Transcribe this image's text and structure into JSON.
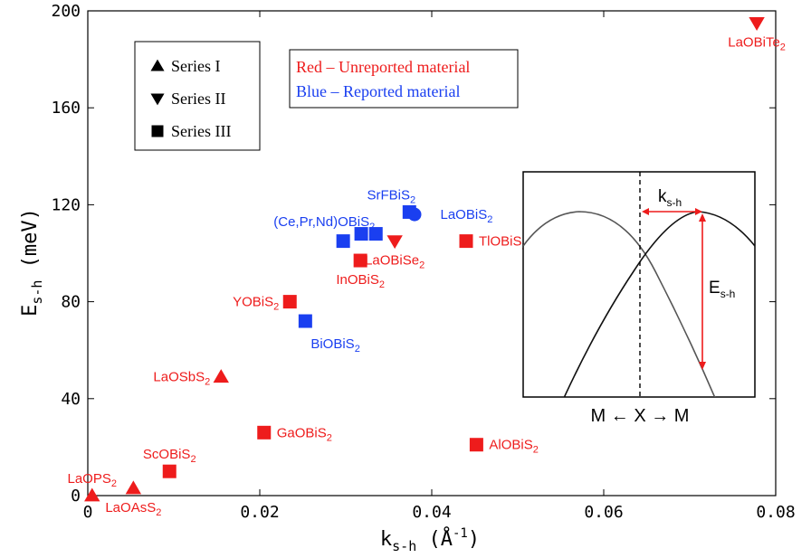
{
  "chart_data": {
    "type": "scatter",
    "xlabel": "k",
    "xlabel_sub": "s-h",
    "xlabel_unit_open": " (",
    "xlabel_unit": "Å",
    "xlabel_unit_sup": "-1",
    "xlabel_unit_close": ")",
    "ylabel": "E",
    "ylabel_sub": "s-h",
    "ylabel_unit": " (meV)",
    "xlim": [
      0,
      0.08
    ],
    "ylim": [
      0,
      200
    ],
    "xticks": [
      {
        "v": 0,
        "t": "0"
      },
      {
        "v": 0.02,
        "t": "0.02"
      },
      {
        "v": 0.04,
        "t": "0.04"
      },
      {
        "v": 0.06,
        "t": "0.06"
      },
      {
        "v": 0.08,
        "t": "0.08"
      }
    ],
    "yticks": [
      {
        "v": 0,
        "t": "0"
      },
      {
        "v": 40,
        "t": "40"
      },
      {
        "v": 80,
        "t": "80"
      },
      {
        "v": 120,
        "t": "120"
      },
      {
        "v": 160,
        "t": "160"
      },
      {
        "v": 200,
        "t": "200"
      }
    ],
    "legend_series": [
      {
        "marker": "triangle-up",
        "label": "Series I"
      },
      {
        "marker": "triangle-down",
        "label": "Series II"
      },
      {
        "marker": "square",
        "label": "Series III"
      }
    ],
    "legend_colors": [
      {
        "color": "#ee1c1c",
        "label": "Red – Unreported material"
      },
      {
        "color": "#1a3ff0",
        "label": "Blue – Reported material"
      }
    ],
    "colors": {
      "unreported": "#ee1c1c",
      "reported": "#1a3ff0"
    },
    "points": [
      {
        "name": "LaOPS",
        "sub": "2",
        "x": 0.0005,
        "y": 0,
        "marker": "triangle-up",
        "color": "unreported",
        "lpos": "above"
      },
      {
        "name": "LaOAsS",
        "sub": "2",
        "x": 0.0053,
        "y": 3,
        "marker": "triangle-up",
        "color": "unreported",
        "lpos": "below"
      },
      {
        "name": "ScOBiS",
        "sub": "2",
        "x": 0.0095,
        "y": 10,
        "marker": "square",
        "color": "unreported",
        "lpos": "above"
      },
      {
        "name": "LaOSbS",
        "sub": "2",
        "x": 0.0155,
        "y": 49,
        "marker": "triangle-up",
        "color": "unreported",
        "lpos": "left"
      },
      {
        "name": "GaOBiS",
        "sub": "2",
        "x": 0.0205,
        "y": 26,
        "marker": "square",
        "color": "unreported",
        "lpos": "right"
      },
      {
        "name": "YOBiS",
        "sub": "2",
        "x": 0.0235,
        "y": 80,
        "marker": "square",
        "color": "unreported",
        "lpos": "left"
      },
      {
        "name": "BiOBiS",
        "sub": "2",
        "x": 0.0253,
        "y": 72,
        "marker": "square",
        "color": "reported",
        "lpos": "below-right"
      },
      {
        "name": "InOBiS",
        "sub": "2",
        "x": 0.0317,
        "y": 97,
        "marker": "square",
        "color": "unreported",
        "lpos": "below"
      },
      {
        "name": "LaOBiSe",
        "sub": "2",
        "x": 0.0357,
        "y": 105,
        "marker": "triangle-down",
        "color": "unreported",
        "lpos": "below"
      },
      {
        "name": "(Ce,Pr,Nd)OBiS",
        "sub": "2",
        "x": 0.0297,
        "y": 105,
        "marker": "square",
        "color": "reported",
        "lpos": "none"
      },
      {
        "name": "",
        "sub": "",
        "x": 0.0318,
        "y": 108,
        "marker": "square",
        "color": "reported",
        "lpos": "none"
      },
      {
        "name": "",
        "sub": "",
        "x": 0.0335,
        "y": 108,
        "marker": "square",
        "color": "reported",
        "lpos": "none"
      },
      {
        "name": "SrFBiS",
        "sub": "2",
        "x": 0.0374,
        "y": 117,
        "marker": "square",
        "color": "reported",
        "lpos": "none"
      },
      {
        "name": "LaOBiS",
        "sub": "2",
        "x": 0.038,
        "y": 116,
        "marker": "circle",
        "color": "reported",
        "lpos": "none"
      },
      {
        "name": "TlOBiS",
        "sub": "2",
        "x": 0.044,
        "y": 105,
        "marker": "square",
        "color": "unreported",
        "lpos": "right"
      },
      {
        "name": "AlOBiS",
        "sub": "2",
        "x": 0.0452,
        "y": 21,
        "marker": "square",
        "color": "unreported",
        "lpos": "right"
      },
      {
        "name": "LaOBiTe",
        "sub": "2",
        "x": 0.0778,
        "y": 195,
        "marker": "triangle-down",
        "color": "unreported",
        "lpos": "below"
      }
    ],
    "group_labels": [
      {
        "name": "(Ce,Pr,Nd)OBiS",
        "sub": "2",
        "color": "reported",
        "x": 0.0275,
        "y": 113
      },
      {
        "name": "SrFBiS",
        "sub": "2",
        "color": "reported",
        "x": 0.0353,
        "y": 124
      },
      {
        "name": "LaOBiS",
        "sub": "2",
        "color": "reported",
        "x": 0.041,
        "y": 116
      }
    ],
    "inset": {
      "k_label": "k",
      "k_sub": "s-h",
      "e_label": "E",
      "e_sub": "s-h",
      "axis_left": "M",
      "axis_mid": "X",
      "axis_right": "M",
      "arrow_left": "←",
      "arrow_right": "→"
    }
  }
}
